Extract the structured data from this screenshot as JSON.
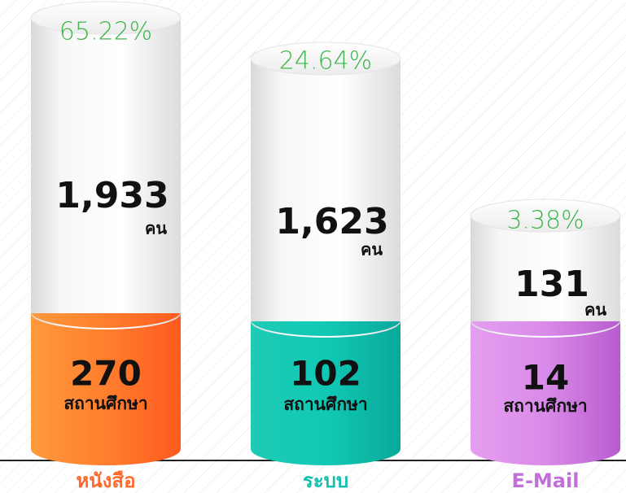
{
  "columns": [
    {
      "percent": "65.22%",
      "people": "1,933",
      "people_unit": "คน",
      "institutions": "270",
      "institutions_unit": "สถานศึกษา",
      "label": "หนังสือ"
    },
    {
      "percent": "24.64%",
      "people": "1,623",
      "people_unit": "คน",
      "institutions": "102",
      "institutions_unit": "สถานศึกษา",
      "label": "ระบบ"
    },
    {
      "percent": "3.38%",
      "people": "131",
      "people_unit": "คน",
      "institutions": "14",
      "institutions_unit": "สถานศึกษา",
      "label": "E-Mail"
    }
  ]
}
